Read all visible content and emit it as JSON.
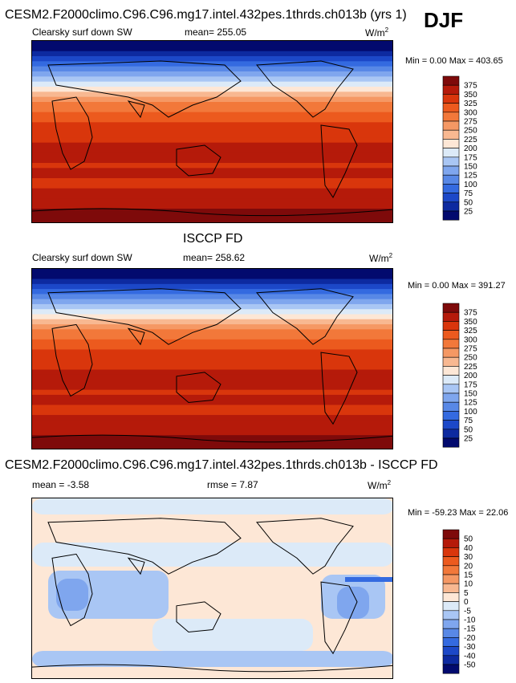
{
  "season": "DJF",
  "panels": [
    {
      "title": "CESM2.F2000climo.C96.C96.mg17.intel.432pes.1thrds.ch013b (yrs 1)",
      "left_label": "Clearsky surf down SW",
      "center_label": "mean= 255.05",
      "units": "W/m",
      "units_sup": "2",
      "minmax": "Min =   0.00 Max = 403.65",
      "levels": [
        "375",
        "350",
        "325",
        "300",
        "275",
        "250",
        "225",
        "200",
        "175",
        "150",
        "125",
        "100",
        "75",
        "50",
        "25"
      ],
      "colors": [
        "#7e0a0a",
        "#b51a0a",
        "#d9360c",
        "#ec5a1e",
        "#f2783a",
        "#f59864",
        "#f8b891",
        "#fde7d6",
        "#dceaf8",
        "#a9c6f4",
        "#7fa6ee",
        "#5888e6",
        "#346ae0",
        "#1c48c8",
        "#0d2aa0",
        "#020a6e"
      ],
      "kind": "sw"
    },
    {
      "title": "ISCCP FD",
      "left_label": "Clearsky surf down SW",
      "center_label": "mean= 258.62",
      "units": "W/m",
      "units_sup": "2",
      "minmax": "Min =   0.00 Max = 391.27",
      "levels": [
        "375",
        "350",
        "325",
        "300",
        "275",
        "250",
        "225",
        "200",
        "175",
        "150",
        "125",
        "100",
        "75",
        "50",
        "25"
      ],
      "colors": [
        "#7e0a0a",
        "#b51a0a",
        "#d9360c",
        "#ec5a1e",
        "#f2783a",
        "#f59864",
        "#f8b891",
        "#fde7d6",
        "#dceaf8",
        "#a9c6f4",
        "#7fa6ee",
        "#5888e6",
        "#346ae0",
        "#1c48c8",
        "#0d2aa0",
        "#020a6e"
      ],
      "kind": "sw"
    },
    {
      "title": "CESM2.F2000climo.C96.C96.mg17.intel.432pes.1thrds.ch013b - ISCCP FD",
      "left_label": "mean =  -3.58",
      "center_label": "rmse =  7.87",
      "units": "W/m",
      "units_sup": "2",
      "minmax": "Min = -59.23 Max =  22.06",
      "levels": [
        "50",
        "40",
        "30",
        "20",
        "15",
        "10",
        "5",
        "0",
        "-5",
        "-10",
        "-15",
        "-20",
        "-30",
        "-40",
        "-50"
      ],
      "colors": [
        "#7e0a0a",
        "#b51a0a",
        "#d9360c",
        "#ec5a1e",
        "#f2783a",
        "#f59864",
        "#f8b891",
        "#fde7d6",
        "#dceaf8",
        "#a9c6f4",
        "#7fa6ee",
        "#5888e6",
        "#346ae0",
        "#1c48c8",
        "#0d2aa0",
        "#020a6e"
      ],
      "kind": "diff"
    }
  ]
}
